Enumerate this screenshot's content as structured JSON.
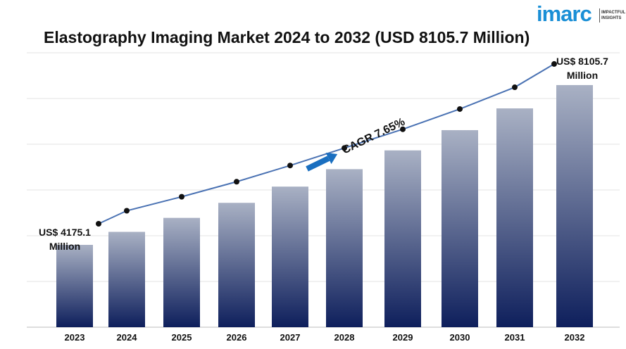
{
  "brand": {
    "logo_text": "imarc",
    "tagline_line1": "IMPACTFUL",
    "tagline_line2": "INSIGHTS"
  },
  "colors": {
    "brand": "#1a8fd6",
    "bar_top": "#a9b1c4",
    "bar_bottom": "#0e1f5c",
    "line": "#4a72b3",
    "arrow": "#1a6fc0"
  },
  "chart_data": {
    "type": "bar",
    "title": "Elastography Imaging Market 2024 to 2032 (USD 8105.7 Million)",
    "categories": [
      "2023",
      "2024",
      "2025",
      "2026",
      "2027",
      "2028",
      "2029",
      "2030",
      "2031",
      "2032"
    ],
    "values": [
      4175.1,
      4495,
      4839,
      5209,
      5608,
      6037,
      6499,
      6997,
      7532,
      8105.7
    ],
    "ylim": [
      2150,
      8900
    ],
    "grid": true,
    "overlay_line": true,
    "annotations": {
      "first_label_line1": "US$ 4175.1",
      "first_label_line2": "Million",
      "last_label_line1": "US$ 8105.7",
      "last_label_line2": "Million",
      "cagr": "CAGR 7.65%"
    }
  }
}
